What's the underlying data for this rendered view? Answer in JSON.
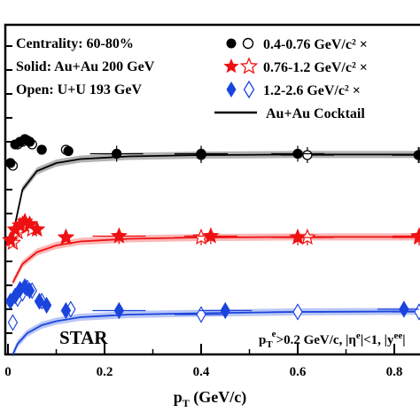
{
  "chart_data": {
    "type": "scatter",
    "title": "",
    "xlabel": "p_T (GeV/c)",
    "ylabel": "",
    "xlim": [
      -0.01,
      0.95
    ],
    "x_ticks": [
      "0",
      "0.2",
      "0.4",
      "0.6",
      "0.8"
    ],
    "x_tick_values": [
      0,
      0.2,
      0.4,
      0.6,
      0.8
    ],
    "grid": false,
    "legend_position": "top-right",
    "info": {
      "centrality": "Centrality: 60-80%",
      "solid": "Solid: Au+Au 200 GeV",
      "open": "Open: U+U 193 GeV",
      "experiment": "STAR",
      "cuts": "p_T^e>0.2 GeV/c, |η^e|<1, |y^ee|"
    },
    "legend": [
      {
        "label": "0.4-0.76 GeV/c² ×",
        "marker": "circle",
        "color": "#000000"
      },
      {
        "label": "0.76-1.2  GeV/c² ×",
        "marker": "star",
        "color": "#ee1111"
      },
      {
        "label": "1.2-2.6  GeV/c² ×",
        "marker": "diamond",
        "color": "#1a44dd"
      },
      {
        "label": "Au+Au Cocktail",
        "marker": "line",
        "color": "#000000"
      }
    ],
    "series": [
      {
        "name": "0.4-0.76 GeV/c²",
        "color": "#000000",
        "marker": "circle",
        "solid_points": [
          [
            0.005,
            0.72
          ],
          [
            0.015,
            0.79
          ],
          [
            0.025,
            0.8
          ],
          [
            0.035,
            0.81
          ],
          [
            0.045,
            0.8
          ],
          [
            0.07,
            0.77
          ],
          [
            0.125,
            0.765
          ],
          [
            0.225,
            0.755
          ],
          [
            0.4,
            0.755
          ],
          [
            0.6,
            0.755
          ],
          [
            0.85,
            0.75
          ]
        ],
        "open_points": [
          [
            0.01,
            0.71
          ],
          [
            0.02,
            0.79
          ],
          [
            0.03,
            0.8
          ],
          [
            0.04,
            0.805
          ],
          [
            0.05,
            0.79
          ],
          [
            0.12,
            0.77
          ],
          [
            0.4,
            0.75
          ],
          [
            0.62,
            0.75
          ],
          [
            0.88,
            0.75
          ]
        ],
        "cocktail": [
          [
            0.01,
            0.45
          ],
          [
            0.03,
            0.62
          ],
          [
            0.06,
            0.69
          ],
          [
            0.1,
            0.72
          ],
          [
            0.15,
            0.735
          ],
          [
            0.25,
            0.745
          ],
          [
            0.4,
            0.75
          ],
          [
            0.6,
            0.752
          ],
          [
            0.95,
            0.752
          ]
        ]
      },
      {
        "name": "0.76-1.2 GeV/c²",
        "color": "#ee1111",
        "marker": "star",
        "solid_points": [
          [
            0.005,
            0.43
          ],
          [
            0.015,
            0.47
          ],
          [
            0.025,
            0.485
          ],
          [
            0.035,
            0.5
          ],
          [
            0.045,
            0.49
          ],
          [
            0.06,
            0.47
          ],
          [
            0.12,
            0.44
          ],
          [
            0.23,
            0.445
          ],
          [
            0.42,
            0.445
          ],
          [
            0.6,
            0.44
          ],
          [
            0.93,
            0.445
          ]
        ],
        "open_points": [
          [
            0.01,
            0.42
          ],
          [
            0.02,
            0.46
          ],
          [
            0.03,
            0.49
          ],
          [
            0.04,
            0.48
          ],
          [
            0.05,
            0.47
          ],
          [
            0.12,
            0.44
          ],
          [
            0.4,
            0.44
          ],
          [
            0.62,
            0.44
          ],
          [
            0.9,
            0.44
          ]
        ],
        "cocktail": [
          [
            0.01,
            0.27
          ],
          [
            0.03,
            0.34
          ],
          [
            0.06,
            0.385
          ],
          [
            0.1,
            0.41
          ],
          [
            0.15,
            0.425
          ],
          [
            0.25,
            0.435
          ],
          [
            0.4,
            0.44
          ],
          [
            0.6,
            0.442
          ],
          [
            0.95,
            0.442
          ]
        ]
      },
      {
        "name": "1.2-2.6 GeV/c²",
        "color": "#1a44dd",
        "marker": "diamond",
        "solid_points": [
          [
            0.005,
            0.2
          ],
          [
            0.015,
            0.22
          ],
          [
            0.025,
            0.245
          ],
          [
            0.035,
            0.255
          ],
          [
            0.045,
            0.24
          ],
          [
            0.065,
            0.2
          ],
          [
            0.08,
            0.185
          ],
          [
            0.12,
            0.165
          ],
          [
            0.23,
            0.165
          ],
          [
            0.45,
            0.165
          ],
          [
            0.82,
            0.17
          ]
        ],
        "open_points": [
          [
            0.01,
            0.12
          ],
          [
            0.02,
            0.21
          ],
          [
            0.03,
            0.23
          ],
          [
            0.04,
            0.25
          ],
          [
            0.05,
            0.24
          ],
          [
            0.07,
            0.2
          ],
          [
            0.13,
            0.17
          ],
          [
            0.4,
            0.15
          ],
          [
            0.6,
            0.16
          ],
          [
            0.88,
            0.16
          ]
        ],
        "cocktail": [
          [
            0.01,
            0.0
          ],
          [
            0.02,
            0.04
          ],
          [
            0.04,
            0.08
          ],
          [
            0.07,
            0.11
          ],
          [
            0.1,
            0.125
          ],
          [
            0.15,
            0.14
          ],
          [
            0.25,
            0.15
          ],
          [
            0.4,
            0.155
          ],
          [
            0.6,
            0.16
          ],
          [
            0.95,
            0.162
          ]
        ]
      }
    ]
  }
}
